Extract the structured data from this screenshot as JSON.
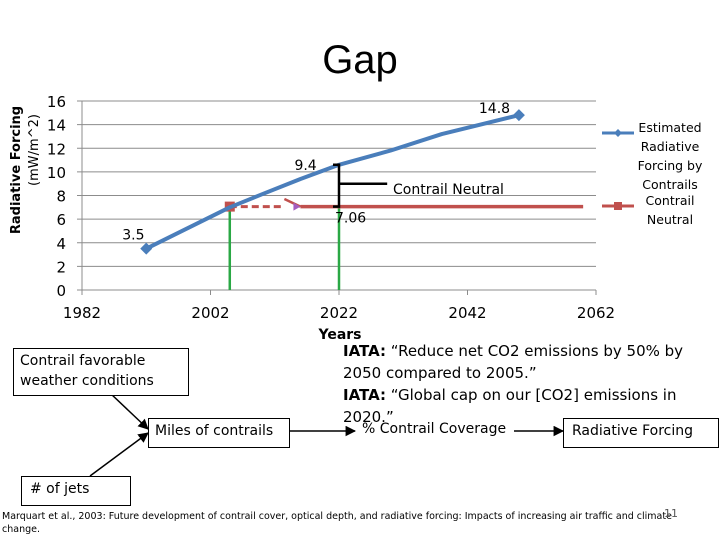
{
  "title": "Gap",
  "chart_data": {
    "type": "line",
    "ylabel_line1": "Radiative Forcing",
    "ylabel_line2": "(mW/m^2)",
    "xlabel": "Years",
    "ylim": [
      0,
      16
    ],
    "xlim": [
      1982,
      2062
    ],
    "yticks": [
      0,
      2,
      4,
      6,
      8,
      10,
      12,
      14,
      16
    ],
    "xticks": [
      1982,
      2002,
      2022,
      2042,
      2062
    ],
    "series": [
      {
        "name": "Estimated Radiative Forcing by Contrails",
        "color": "#4a7ebb",
        "marker": "diamond",
        "x": [
          1992,
          2005,
          2010,
          2016,
          2022,
          2030,
          2038,
          2050
        ],
        "y": [
          3.5,
          7.0,
          8.1,
          9.4,
          10.6,
          11.8,
          13.2,
          14.8
        ]
      },
      {
        "name": "Contrail Neutral",
        "color": "#c0504d",
        "marker": "square",
        "x": [
          2005,
          2060
        ],
        "y": [
          7.06,
          7.06
        ]
      }
    ],
    "data_labels": [
      {
        "text": "3.5",
        "x": 1992,
        "y": 3.5
      },
      {
        "text": "9.4",
        "x": 2016,
        "y": 9.4
      },
      {
        "text": "14.8",
        "x": 2050,
        "y": 14.8
      },
      {
        "text": "7.06",
        "x": 2022,
        "y": 7.06
      }
    ],
    "annotation": "Contrail Neutral"
  },
  "text": {
    "favorable": "Contrail favorable weather conditions",
    "miles": "Miles of contrails",
    "coverage": "% Contrail Coverage",
    "forcing": "Radiative Forcing",
    "jets": "# of jets",
    "iata1_label": "IATA:",
    "iata1_text": "“Reduce net CO2 emissions by 50% by 2050 compared to 2005.”",
    "iata2_label": "IATA:",
    "iata2_text": "“Global cap on our [CO2] emissions in 2020.”",
    "citation": "Marquart et al., 2003: Future development of contrail cover, optical depth, and radiative forcing: Impacts of increasing air traffic and climate change.",
    "page_number": "11"
  }
}
